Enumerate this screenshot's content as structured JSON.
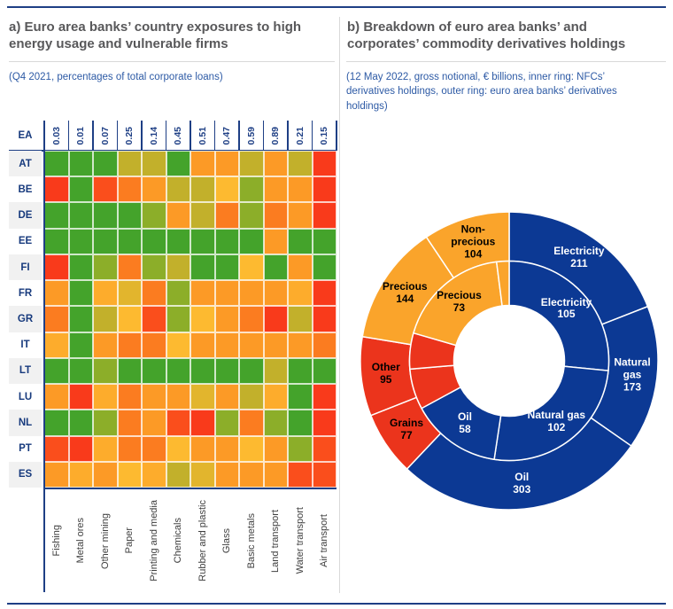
{
  "chart_data": [
    {
      "panel": "a",
      "type": "heatmap",
      "title": "a) Euro area banks’ country exposures to high\nenergy usage and vulnerable firms",
      "subtitle": "(Q4 2021, percentages of total corporate loans)",
      "columns": [
        "Fishing",
        "Metal ores",
        "Other mining",
        "Paper",
        "Printing and media",
        "Chemicals",
        "Rubber and plastic",
        "Glass",
        "Basic metals",
        "Land transport",
        "Water transport",
        "Air transport"
      ],
      "ea_row": {
        "label": "EA",
        "values": [
          "0.03",
          "0.01",
          "0.07",
          "0.25",
          "0.14",
          "0.45",
          "0.51",
          "0.47",
          "0.59",
          "0.89",
          "0.21",
          "0.15"
        ]
      },
      "palette": {
        "G": "#44A32B",
        "LG": "#8CAE29",
        "OL": "#C2B02B",
        "DY": "#E2B52D",
        "Y": "#FDBA30",
        "YO": "#FDAC2C",
        "O": "#FC9A26",
        "DO": "#FB7C20",
        "RO": "#FA4E1C",
        "R": "#F93A1B"
      },
      "rows": [
        {
          "label": "AT",
          "cells": [
            "G",
            "G",
            "G",
            "OL",
            "OL",
            "G",
            "O",
            "O",
            "OL",
            "O",
            "OL",
            "R"
          ]
        },
        {
          "label": "BE",
          "cells": [
            "R",
            "G",
            "RO",
            "DO",
            "O",
            "OL",
            "OL",
            "Y",
            "LG",
            "O",
            "O",
            "R"
          ]
        },
        {
          "label": "DE",
          "cells": [
            "G",
            "G",
            "G",
            "G",
            "LG",
            "O",
            "OL",
            "DO",
            "LG",
            "DO",
            "O",
            "R"
          ]
        },
        {
          "label": "EE",
          "cells": [
            "G",
            "G",
            "G",
            "G",
            "G",
            "G",
            "G",
            "G",
            "G",
            "O",
            "G",
            "G"
          ]
        },
        {
          "label": "FI",
          "cells": [
            "R",
            "G",
            "LG",
            "DO",
            "LG",
            "OL",
            "G",
            "G",
            "Y",
            "G",
            "O",
            "G"
          ]
        },
        {
          "label": "FR",
          "cells": [
            "O",
            "G",
            "YO",
            "DY",
            "DO",
            "LG",
            "O",
            "O",
            "O",
            "O",
            "YO",
            "R"
          ]
        },
        {
          "label": "GR",
          "cells": [
            "DO",
            "G",
            "OL",
            "Y",
            "RO",
            "LG",
            "Y",
            "O",
            "DO",
            "R",
            "OL",
            "R"
          ]
        },
        {
          "label": "IT",
          "cells": [
            "YO",
            "G",
            "O",
            "DO",
            "DO",
            "Y",
            "O",
            "O",
            "O",
            "O",
            "O",
            "DO"
          ]
        },
        {
          "label": "LT",
          "cells": [
            "G",
            "G",
            "LG",
            "G",
            "G",
            "G",
            "G",
            "G",
            "G",
            "OL",
            "G",
            "G"
          ]
        },
        {
          "label": "LU",
          "cells": [
            "O",
            "R",
            "YO",
            "DO",
            "O",
            "O",
            "DY",
            "O",
            "OL",
            "YO",
            "G",
            "R"
          ]
        },
        {
          "label": "NL",
          "cells": [
            "G",
            "G",
            "LG",
            "DO",
            "O",
            "RO",
            "R",
            "LG",
            "DO",
            "LG",
            "G",
            "R"
          ]
        },
        {
          "label": "PT",
          "cells": [
            "RO",
            "R",
            "YO",
            "DO",
            "DO",
            "Y",
            "O",
            "O",
            "Y",
            "O",
            "LG",
            "RO"
          ]
        },
        {
          "label": "ES",
          "cells": [
            "O",
            "YO",
            "O",
            "Y",
            "YO",
            "OL",
            "DY",
            "O",
            "O",
            "O",
            "RO",
            "RO"
          ]
        }
      ]
    },
    {
      "panel": "b",
      "type": "pie",
      "title": "b) Breakdown of euro area banks’ and\ncorporates’ commodity derivatives holdings",
      "subtitle": "(12 May 2022, gross notional, € billions, inner ring: NFCs’\nderivatives holdings, outer ring: euro area banks’ derivatives\nholdings)",
      "colors": {
        "blue": "#0C3994",
        "red": "#EB341C",
        "orange": "#FAA42B"
      },
      "outer_ring": {
        "name": "euro area banks’ derivatives holdings",
        "segments": [
          {
            "label": "Electricity",
            "value": 211,
            "color": "blue",
            "display": "Electricity\n211",
            "text_color": "#FFFFFF"
          },
          {
            "label": "Natural gas",
            "value": 173,
            "color": "blue",
            "display": "Natural\ngas\n173",
            "text_color": "#FFFFFF"
          },
          {
            "label": "Oil",
            "value": 303,
            "color": "blue",
            "display": "Oil\n303",
            "text_color": "#FFFFFF"
          },
          {
            "label": "Grains",
            "value": 77,
            "color": "red",
            "display": "Grains\n77",
            "text_color": "#000000"
          },
          {
            "label": "Other",
            "value": 95,
            "color": "red",
            "display": "Other\n95",
            "text_color": "#000000"
          },
          {
            "label": "Precious",
            "value": 144,
            "color": "orange",
            "display": "Precious\n144",
            "text_color": "#000000"
          },
          {
            "label": "Non-precious",
            "value": 104,
            "color": "orange",
            "display": "Non-\nprecious\n104",
            "text_color": "#000000"
          }
        ]
      },
      "inner_ring": {
        "name": "NFCs’ derivatives holdings",
        "segments": [
          {
            "label": "Electricity",
            "value": 105,
            "color": "blue",
            "display": "Electricity\n105",
            "text_color": "#FFFFFF"
          },
          {
            "label": "Natural gas",
            "value": 102,
            "color": "blue",
            "display": "Natural gas\n102",
            "text_color": "#FFFFFF"
          },
          {
            "label": "Oil",
            "value": 58,
            "color": "blue",
            "display": "Oil\n58",
            "text_color": "#FFFFFF"
          },
          {
            "label": "",
            "value": null,
            "color": "red",
            "render_weight": 26
          },
          {
            "label": "",
            "value": null,
            "color": "red",
            "render_weight": 23
          },
          {
            "label": "Precious",
            "value": 73,
            "color": "orange",
            "display": "Precious\n73",
            "text_color": "#000000"
          },
          {
            "label": "",
            "value": null,
            "color": "orange",
            "render_weight": 8
          }
        ]
      }
    }
  ]
}
